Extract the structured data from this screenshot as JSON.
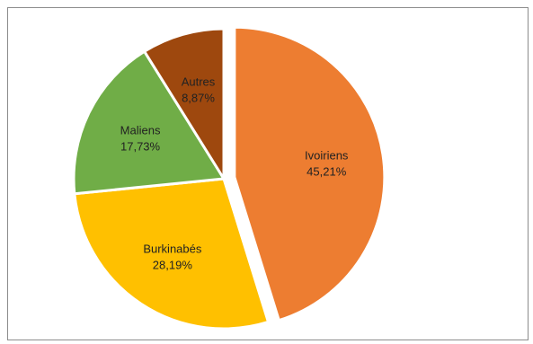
{
  "chart_data": {
    "type": "pie",
    "slices": [
      {
        "name": "Ivoiriens",
        "value_label": "45,21%",
        "value": 45.21,
        "color": "#ED7D31",
        "exploded": true
      },
      {
        "name": "Burkinabés",
        "value_label": "28,19%",
        "value": 28.19,
        "color": "#FFC000",
        "exploded": false
      },
      {
        "name": "Maliens",
        "value_label": "17,73%",
        "value": 17.73,
        "color": "#70AD47",
        "exploded": false
      },
      {
        "name": "Autres",
        "value_label": "8,87%",
        "value": 8.87,
        "color": "#9E480E",
        "exploded": false
      }
    ],
    "legend": "none",
    "border_color": "#8C8C8C"
  }
}
